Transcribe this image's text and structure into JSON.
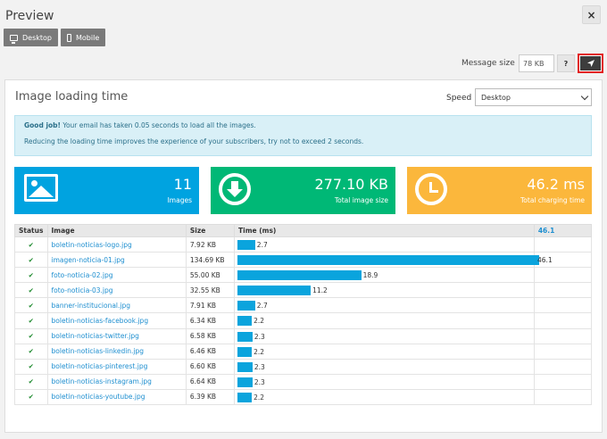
{
  "modal": {
    "title": "Preview",
    "close_label": "×"
  },
  "device_buttons": [
    {
      "label": "Desktop",
      "icon": "monitor-icon"
    },
    {
      "label": "Mobile",
      "icon": "phone-icon"
    }
  ],
  "message": {
    "label": "Message size",
    "value": "78 KB",
    "help_label": "?",
    "send_icon": "rocket-icon"
  },
  "panel": {
    "title": "Image loading time",
    "speed_label": "Speed",
    "speed_value": "Desktop",
    "alert": {
      "strong": "Good job!",
      "line1": " Your email has taken 0.05 seconds to load all the images.",
      "line2": "Reducing the loading time improves the experience of your subscribers, try not to exceed 2 seconds."
    },
    "stats": [
      {
        "value": "11",
        "caption": "Images",
        "icon": "image-icon",
        "color": "#00a3e0"
      },
      {
        "value": "277.10 KB",
        "caption": "Total image size",
        "icon": "download-icon",
        "color": "#00b876"
      },
      {
        "value": "46.2 ms",
        "caption": "Total charging time",
        "icon": "clock-icon",
        "color": "#fbb73c"
      }
    ],
    "table": {
      "headers": {
        "status": "Status",
        "image": "Image",
        "size": "Size",
        "time": "Time (ms)",
        "max": "46.1"
      },
      "max_time": 46.1,
      "rows": [
        {
          "name": "boletin-noticias-logo.jpg",
          "size": "7.92 KB",
          "time": 2.7,
          "time_label": "2.7"
        },
        {
          "name": "imagen-noticia-01.jpg",
          "size": "134.69 KB",
          "time": 46.1,
          "time_label": "46.1"
        },
        {
          "name": "foto-noticia-02.jpg",
          "size": "55.00 KB",
          "time": 18.9,
          "time_label": "18.9"
        },
        {
          "name": "foto-noticia-03.jpg",
          "size": "32.55 KB",
          "time": 11.2,
          "time_label": "11.2"
        },
        {
          "name": "banner-institucional.jpg",
          "size": "7.91 KB",
          "time": 2.7,
          "time_label": "2.7"
        },
        {
          "name": "boletin-noticias-facebook.jpg",
          "size": "6.34 KB",
          "time": 2.2,
          "time_label": "2.2"
        },
        {
          "name": "boletin-noticias-twitter.jpg",
          "size": "6.58 KB",
          "time": 2.3,
          "time_label": "2.3"
        },
        {
          "name": "boletin-noticias-linkedin.jpg",
          "size": "6.46 KB",
          "time": 2.2,
          "time_label": "2.2"
        },
        {
          "name": "boletin-noticias-pinterest.jpg",
          "size": "6.60 KB",
          "time": 2.3,
          "time_label": "2.3"
        },
        {
          "name": "boletin-noticias-instagram.jpg",
          "size": "6.64 KB",
          "time": 2.3,
          "time_label": "2.3"
        },
        {
          "name": "boletin-noticias-youtube.jpg",
          "size": "6.39 KB",
          "time": 2.2,
          "time_label": "2.2"
        }
      ],
      "status_icon": "check-icon",
      "status_glyph": "✔"
    }
  }
}
